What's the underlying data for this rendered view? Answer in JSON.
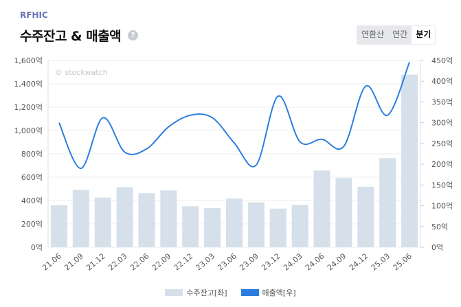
{
  "header": {
    "company": "RFHIC",
    "title": "수주잔고 & 매출액",
    "help_icon": "?",
    "periods": [
      {
        "label": "연환산",
        "active": false
      },
      {
        "label": "연간",
        "active": false
      },
      {
        "label": "분기",
        "active": true
      }
    ]
  },
  "chart_data": {
    "type": "bar+line",
    "watermark": "© stockwatch",
    "categories": [
      "21.06",
      "21.09",
      "21.12",
      "22.03",
      "22.06",
      "22.09",
      "22.12",
      "23.03",
      "23.06",
      "23.09",
      "23.12",
      "24.03",
      "24.06",
      "24.09",
      "24.12",
      "25.03",
      "25.06"
    ],
    "series": [
      {
        "name": "수주잔고[좌]",
        "type": "bar",
        "axis": "left",
        "color": "#d5e0eb",
        "values": [
          360,
          490,
          425,
          514,
          463,
          486,
          351,
          335,
          416,
          384,
          331,
          363,
          657,
          592,
          518,
          763,
          1478
        ]
      },
      {
        "name": "매출액[우]",
        "type": "line",
        "axis": "right",
        "color": "#2b7de0",
        "values": [
          300,
          190,
          312,
          229,
          237,
          290,
          318,
          312,
          251,
          198,
          364,
          254,
          260,
          243,
          388,
          318,
          446
        ]
      }
    ],
    "left_axis": {
      "ylim": [
        0,
        1600
      ],
      "ticks": [
        "0억",
        "200억",
        "400억",
        "600억",
        "800억",
        "1,000억",
        "1,200억",
        "1,400억",
        "1,600억"
      ]
    },
    "right_axis": {
      "ylim": [
        0,
        450
      ],
      "ticks": [
        "0억",
        "50억",
        "100억",
        "150억",
        "200억",
        "250억",
        "300억",
        "350억",
        "400억",
        "450억"
      ]
    },
    "legend_position": "bottom"
  }
}
